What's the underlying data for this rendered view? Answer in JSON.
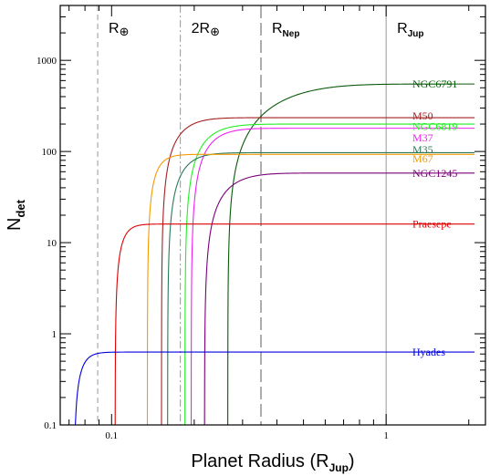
{
  "chart_data": {
    "type": "line",
    "xlabel": "Planet Radius (R_Jup)",
    "ylabel": "N_det",
    "xscale": "log",
    "yscale": "log",
    "xlim": [
      0.065,
      2.3
    ],
    "ylim": [
      0.1,
      4000
    ],
    "grid": false,
    "legend": "inline labels at right end of each curve",
    "x_ticks": [
      {
        "value": 0.1,
        "label": "0.1"
      },
      {
        "value": 1,
        "label": "1"
      }
    ],
    "y_ticks": [
      {
        "value": 0.1,
        "label": "0.1"
      },
      {
        "value": 1,
        "label": "1"
      },
      {
        "value": 10,
        "label": "10"
      },
      {
        "value": 100,
        "label": "100"
      },
      {
        "value": 1000,
        "label": "1000"
      }
    ],
    "reference_lines": [
      {
        "x": 0.089,
        "main": "R",
        "sub": "⊕",
        "sub_style": "symbol",
        "style": "dashed"
      },
      {
        "x": 0.178,
        "main": "2R",
        "sub": "⊕",
        "sub_style": "symbol",
        "style": "dashdot"
      },
      {
        "x": 0.35,
        "main": "R",
        "sub": "Nep",
        "sub_style": "sub",
        "style": "longdash"
      },
      {
        "x": 1.0,
        "main": "R",
        "sub": "Jup",
        "sub_style": "sub",
        "style": "solid"
      }
    ],
    "series": [
      {
        "name": "NGC6791",
        "color": "#0a5a0a",
        "x0": 0.265,
        "plateau": 550,
        "scale": 0.55,
        "label_y": 550
      },
      {
        "name": "M50",
        "color": "#a52020",
        "x0": 0.152,
        "plateau": 235,
        "scale": 0.16,
        "label_y": 245
      },
      {
        "name": "NGC6819",
        "color": "#22ee22",
        "x0": 0.185,
        "plateau": 200,
        "scale": 0.18,
        "label_y": 190
      },
      {
        "name": "M37",
        "color": "#ee22ee",
        "x0": 0.195,
        "plateau": 180,
        "scale": 0.16,
        "label_y": 142
      },
      {
        "name": "M35",
        "color": "#2a7a5a",
        "x0": 0.16,
        "plateau": 97,
        "scale": 0.14,
        "label_y": 105
      },
      {
        "name": "M67",
        "color": "#f39a00",
        "x0": 0.135,
        "plateau": 93,
        "scale": 0.08,
        "label_y": 83
      },
      {
        "name": "NGC1245",
        "color": "#7a007a",
        "x0": 0.218,
        "plateau": 58,
        "scale": 0.2,
        "label_y": 58
      },
      {
        "name": "Praesepe",
        "color": "#dd0000",
        "x0": 0.103,
        "plateau": 16,
        "scale": 0.065,
        "label_y": 16
      },
      {
        "name": "Hyades",
        "color": "#0000dd",
        "x0": 0.073,
        "plateau": 0.63,
        "scale": 0.065,
        "label_y": 0.63
      }
    ]
  }
}
